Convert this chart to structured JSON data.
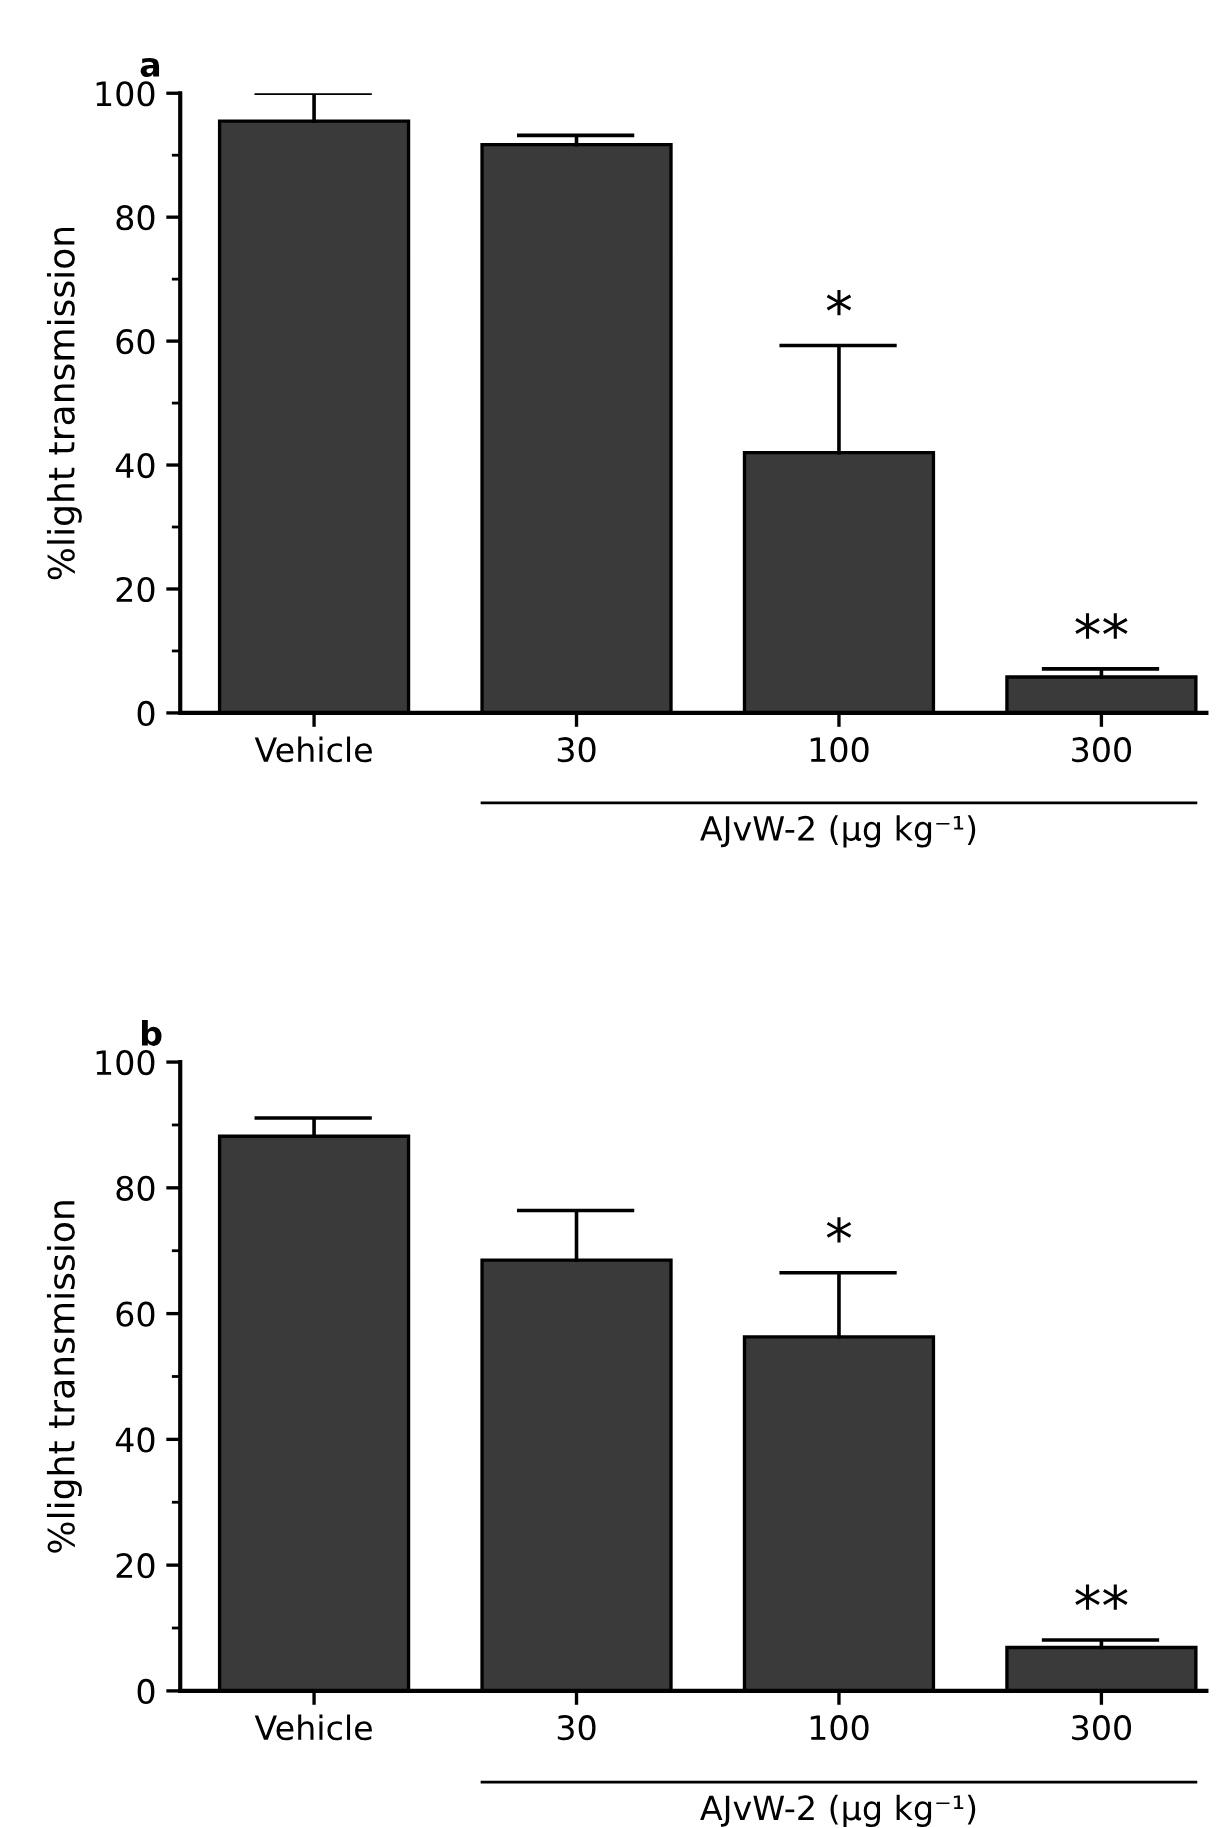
{
  "chart_data": [
    {
      "type": "bar",
      "title": "a",
      "ylabel": "%light transmission",
      "xlabel": "AJvW-2 (μg kg⁻¹)",
      "categories": [
        "Vehicle",
        "30",
        "100",
        "300"
      ],
      "values": [
        95.5,
        91.7,
        42,
        5.8
      ],
      "color": "#3a3a3a",
      "errors": [
        [
          95.5,
          100
        ],
        [
          91.7,
          93.2
        ],
        [
          42,
          59.3
        ],
        [
          5.8,
          7.1
        ]
      ],
      "ylim": [
        0,
        100
      ],
      "yticks": [
        0,
        20,
        40,
        60,
        80,
        100
      ],
      "grid": false,
      "legend": false,
      "annotations": [
        {
          "text": "*",
          "x": "100",
          "y": 59.3
        },
        {
          "text": "**",
          "x": "300",
          "y": 7.1
        }
      ]
    },
    {
      "type": "bar",
      "title": "b",
      "ylabel": "%light transmission",
      "xlabel": "AJvW-2 (μg kg⁻¹)",
      "categories": [
        "Vehicle",
        "30",
        "100",
        "300"
      ],
      "values": [
        88.2,
        68.5,
        56.3,
        6.9
      ],
      "color": "#3a3a3a",
      "errors": [
        [
          88.2,
          91.1
        ],
        [
          68.5,
          76.4
        ],
        [
          56.3,
          66.5
        ],
        [
          6.9,
          8.1
        ]
      ],
      "ylim": [
        0,
        100
      ],
      "yticks": [
        0,
        20,
        40,
        60,
        80,
        100
      ],
      "grid": false,
      "legend": false,
      "annotations": [
        {
          "text": "*",
          "x": "100",
          "y": 66.5
        },
        {
          "text": "**",
          "x": "300",
          "y": 8.1
        }
      ]
    }
  ]
}
